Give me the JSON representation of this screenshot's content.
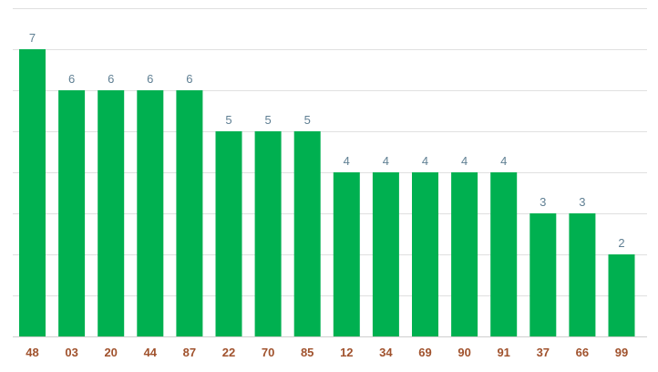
{
  "chart_data": {
    "type": "bar",
    "categories": [
      "48",
      "03",
      "20",
      "44",
      "87",
      "22",
      "70",
      "85",
      "12",
      "34",
      "69",
      "90",
      "91",
      "37",
      "66",
      "99"
    ],
    "values": [
      7,
      6,
      6,
      6,
      6,
      5,
      5,
      5,
      4,
      4,
      4,
      4,
      4,
      3,
      3,
      2
    ],
    "title": "",
    "xlabel": "",
    "ylabel": "",
    "ylim": [
      0,
      8
    ],
    "grid": true,
    "legend": "none",
    "colors": {
      "bar": "#00b050",
      "value_label": "#5f7f93",
      "category_label": "#a0522d",
      "grid": "#e0e0e0"
    }
  }
}
